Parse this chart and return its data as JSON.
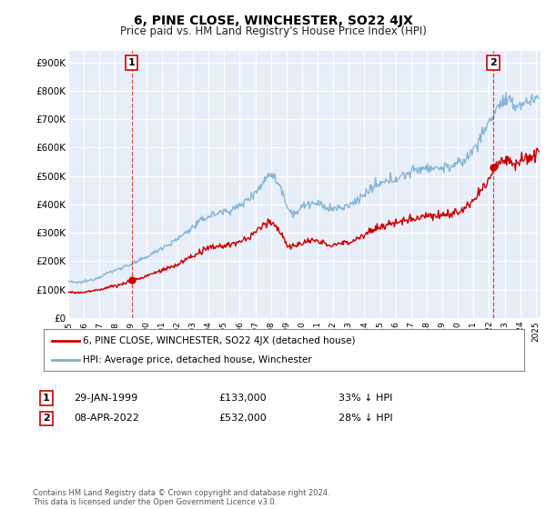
{
  "title": "6, PINE CLOSE, WINCHESTER, SO22 4JX",
  "subtitle": "Price paid vs. HM Land Registry's House Price Index (HPI)",
  "ylabel_ticks": [
    "£0",
    "£100K",
    "£200K",
    "£300K",
    "£400K",
    "£500K",
    "£600K",
    "£700K",
    "£800K",
    "£900K"
  ],
  "ylim": [
    0,
    940000
  ],
  "xlim_start": 1995.0,
  "xlim_end": 2025.3,
  "transaction1": {
    "date_num": 1999.07,
    "price": 133000,
    "label": "1"
  },
  "transaction2": {
    "date_num": 2022.27,
    "price": 532000,
    "label": "2"
  },
  "legend_line1": "6, PINE CLOSE, WINCHESTER, SO22 4JX (detached house)",
  "legend_line2": "HPI: Average price, detached house, Winchester",
  "table_row1": [
    "1",
    "29-JAN-1999",
    "£133,000",
    "33% ↓ HPI"
  ],
  "table_row2": [
    "2",
    "08-APR-2022",
    "£532,000",
    "28% ↓ HPI"
  ],
  "footer": "Contains HM Land Registry data © Crown copyright and database right 2024.\nThis data is licensed under the Open Government Licence v3.0.",
  "red_color": "#cc0000",
  "blue_color": "#7ab0d4",
  "plot_bg": "#e8eef8",
  "grid_color": "#ffffff"
}
